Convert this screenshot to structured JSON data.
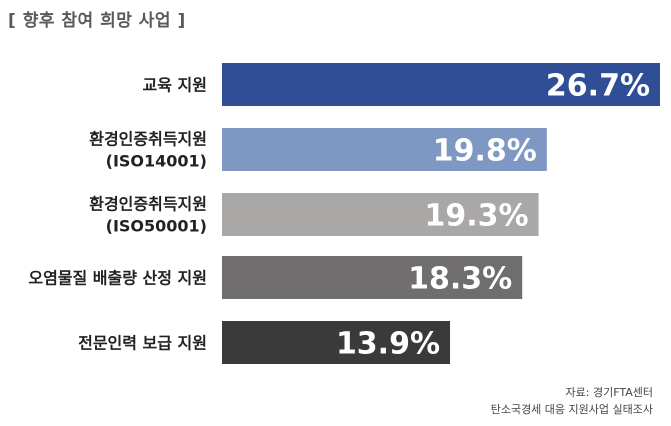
{
  "chart_data": {
    "type": "bar",
    "orientation": "horizontal",
    "title": "[ 향후 참여 희망 사업 ]",
    "categories": [
      [
        "교육 지원"
      ],
      [
        "환경인증취득지원",
        "(ISO14001)"
      ],
      [
        "환경인증취득지원",
        "(ISO50001)"
      ],
      [
        "오염물질 배출량 산정 지원"
      ],
      [
        "전문인력 보급 지원"
      ]
    ],
    "values": [
      26.7,
      19.8,
      19.3,
      18.3,
      13.9
    ],
    "value_labels": [
      "26.7%",
      "19.8%",
      "19.3%",
      "18.3%",
      "13.9%"
    ],
    "unit": "%",
    "colors": [
      "#2f4e96",
      "#7f97c3",
      "#aaa8a7",
      "#6f6d6d",
      "#3a3a3a"
    ],
    "xlim": [
      0,
      26.7
    ],
    "grid": false,
    "legend": "none"
  },
  "source": {
    "line1": "자료: 경기FTA센터",
    "line2": "탄소국경세 대응 지원사업 실태조사"
  }
}
